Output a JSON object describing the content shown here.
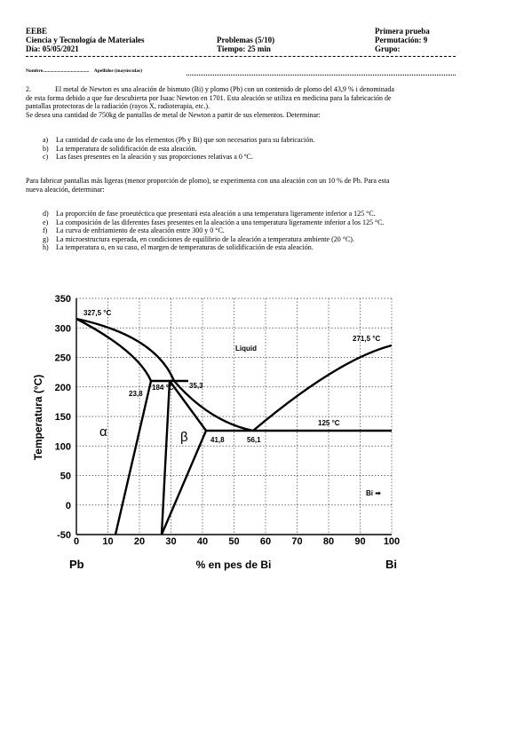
{
  "header": {
    "left": [
      "EEBE",
      "Ciencia y Tecnología de Materiales",
      "Día: 05/05/2021"
    ],
    "middle": [
      "Problemas (5/10)",
      "Tiempo: 25 min"
    ],
    "right": [
      "Primera prueba",
      "Permutación: 9",
      "Grupo:"
    ]
  },
  "name_line": {
    "nombre": "Nombre......................................",
    "apellidos": "Apellidos (mayúsculas)"
  },
  "problem": {
    "number": "2.",
    "intro_line1": "El metal de Newton es una aleación de bismuto (Bi) y plomo (Pb) con un contenido de plomo del 43,9 % i denominada",
    "intro_line2": "de esta forma debido a que fue descubierta por Isaac Newton en 1701. Esta aleación se utiliza en medicina para la fabricación de",
    "intro_line3": "pantallas protectoras de la radiación (rayos X, radioterapia, etc.).",
    "intro_line4": "Se desea una cantidad de 750kg de pantallas de metal de Newton a partir de sus elementos. Determinar:",
    "items1": [
      {
        "label": "a)",
        "text": "La cantidad de cada uno de los elementos (Pb y Bi) que son necesarios para su fabricación."
      },
      {
        "label": "b)",
        "text": "La temperatura de solidificación de esta aleación."
      },
      {
        "label": "c)",
        "text": "Las fases presentes en la aleación y sus proporciones relativas a 0 ºC."
      }
    ],
    "second_line1": "Para fabricar pantallas más ligeras (menor proporción de plomo), se experimenta con una aleación con un 10 % de Pb. Para esta",
    "second_line2": "nueva aleación, determinar:",
    "items2": [
      {
        "label": "d)",
        "text": "La proporción de fase proeutéctica que presentará esta aleación a una temperatura ligeramente inferior a 125 °C."
      },
      {
        "label": "e)",
        "text": "La composición de las diferentes fases presentes en la aleación a una temperatura ligeramente inferior a los 125 °C."
      },
      {
        "label": "f)",
        "text": "La curva de enfriamiento de esta aleación entre 300 y 0 °C."
      },
      {
        "label": "g)",
        "text": "La microestructura esperada, en condiciones de equilibrio de la aleación a temperatura ambiente (20 °C)."
      },
      {
        "label": "h)",
        "text": "La temperatura o, en su caso, el margen de temperaturas de solidificación de esta aleación."
      }
    ]
  },
  "diagram": {
    "ylabel": "Temperatura (°C)",
    "xlabel": "% en pes de Bi",
    "x_left_label": "Pb",
    "x_right_label": "Bi",
    "yticks": [
      "350",
      "300",
      "250",
      "200",
      "150",
      "100",
      "50",
      "0",
      "-50"
    ],
    "xticks": [
      "0",
      "10",
      "20",
      "30",
      "40",
      "50",
      "60",
      "70",
      "80",
      "90",
      "100"
    ],
    "labels": {
      "pb_melt": "327,5 °C",
      "bi_melt": "271,5 °C",
      "liquid": "Liquid",
      "peritectic_temp": "184 °C",
      "peritectic_left": "23,8",
      "peritectic_right": "35,3",
      "eutectic_temp": "125 °C",
      "eutectic_beta": "41,8",
      "eutectic_comp": "56,1",
      "alpha": "α",
      "beta": "β",
      "bi_arrow": "Bi ➡"
    }
  }
}
